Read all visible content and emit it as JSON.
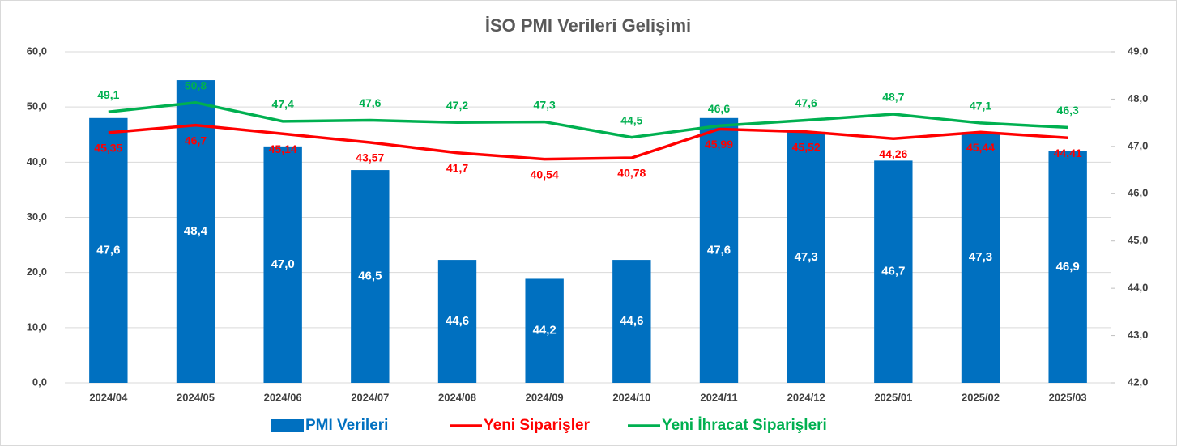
{
  "chart_data": {
    "type": "bar",
    "title": "İSO PMI Verileri Gelişimi",
    "categories": [
      "2024/04",
      "2024/05",
      "2024/06",
      "2024/07",
      "2024/08",
      "2024/09",
      "2024/10",
      "2024/11",
      "2024/12",
      "2025/01",
      "2025/02",
      "2025/03"
    ],
    "ylim": [
      0,
      60
    ],
    "yticks": [
      {
        "value": 0,
        "label": "0,0"
      },
      {
        "value": 10,
        "label": "10,0"
      },
      {
        "value": 20,
        "label": "20,0"
      },
      {
        "value": 30,
        "label": "30,0"
      },
      {
        "value": 40,
        "label": "40,0"
      },
      {
        "value": 50,
        "label": "50,0"
      },
      {
        "value": 60,
        "label": "60,0"
      }
    ],
    "y2lim": [
      42,
      49
    ],
    "y2ticks": [
      {
        "value": 42,
        "label": "42,0"
      },
      {
        "value": 43,
        "label": "43,0"
      },
      {
        "value": 44,
        "label": "44,0"
      },
      {
        "value": 45,
        "label": "45,0"
      },
      {
        "value": 46,
        "label": "46,0"
      },
      {
        "value": 47,
        "label": "47,0"
      },
      {
        "value": 48,
        "label": "48,0"
      },
      {
        "value": 49,
        "label": "49,0"
      }
    ],
    "grid": true,
    "legend": "bottom",
    "series": [
      {
        "name": "PMI Verileri",
        "type": "bar",
        "axis": "y2",
        "color": "#0070c0",
        "values": [
          47.6,
          48.4,
          47.0,
          46.5,
          44.6,
          44.2,
          44.6,
          47.6,
          47.3,
          46.7,
          47.3,
          46.9
        ],
        "value_labels": [
          "47,6",
          "48,4",
          "47,0",
          "46,5",
          "44,6",
          "44,2",
          "44,6",
          "47,6",
          "47,3",
          "46,7",
          "47,3",
          "46,9"
        ]
      },
      {
        "name": "Yeni Siparişler",
        "type": "line",
        "color": "#ff0000",
        "values": [
          45.35,
          46.7,
          45.14,
          43.57,
          41.7,
          40.54,
          40.78,
          45.99,
          45.52,
          44.26,
          45.44,
          44.41
        ],
        "value_labels": [
          "45,35",
          "46,7",
          "45,14",
          "43,57",
          "41,7",
          "40,54",
          "40,78",
          "45,99",
          "45,52",
          "44,26",
          "45,44",
          "44,41"
        ]
      },
      {
        "name": "Yeni İhracat Siparişleri",
        "type": "line",
        "color": "#00b050",
        "values": [
          49.1,
          50.8,
          47.4,
          47.6,
          47.2,
          47.3,
          44.5,
          46.6,
          47.6,
          48.7,
          47.1,
          46.3
        ],
        "value_labels": [
          "49,1",
          "50,8",
          "47,4",
          "47,6",
          "47,2",
          "47,3",
          "44,5",
          "46,6",
          "47,6",
          "48,7",
          "47,1",
          "46,3"
        ]
      }
    ]
  }
}
